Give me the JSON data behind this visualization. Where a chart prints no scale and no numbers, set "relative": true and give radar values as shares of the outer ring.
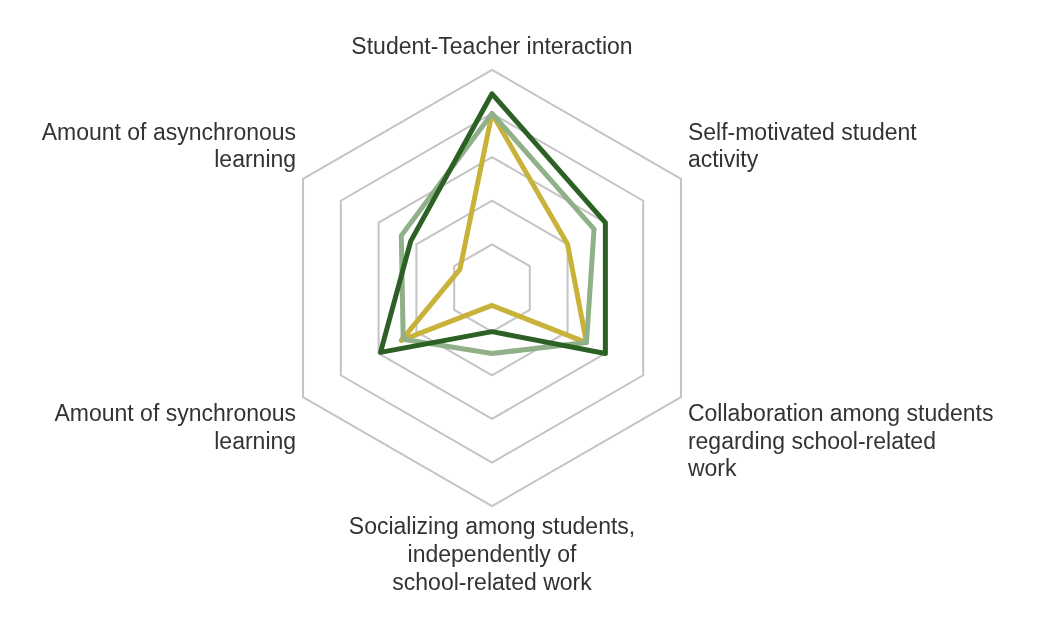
{
  "chart_data": {
    "type": "radar",
    "relative": true,
    "grid": true,
    "legend": false,
    "categories": [
      "Student-Teacher interaction",
      "Self-motivated student activity",
      "Collaboration among students regarding school-related work",
      "Socializing among students, independently of school-related work",
      "Amount of synchronous learning",
      "Amount of asynchronous learning"
    ],
    "series": [
      {
        "color": "#2d6024",
        "values": [
          0.89,
          0.6,
          0.6,
          0.2,
          0.59,
          0.43
        ]
      },
      {
        "color": "#8fb088",
        "values": [
          0.8,
          0.54,
          0.5,
          0.3,
          0.47,
          0.48
        ]
      },
      {
        "color": "#c9b23a",
        "values": [
          0.8,
          0.4,
          0.5,
          0.08,
          0.48,
          0.17
        ]
      }
    ]
  }
}
